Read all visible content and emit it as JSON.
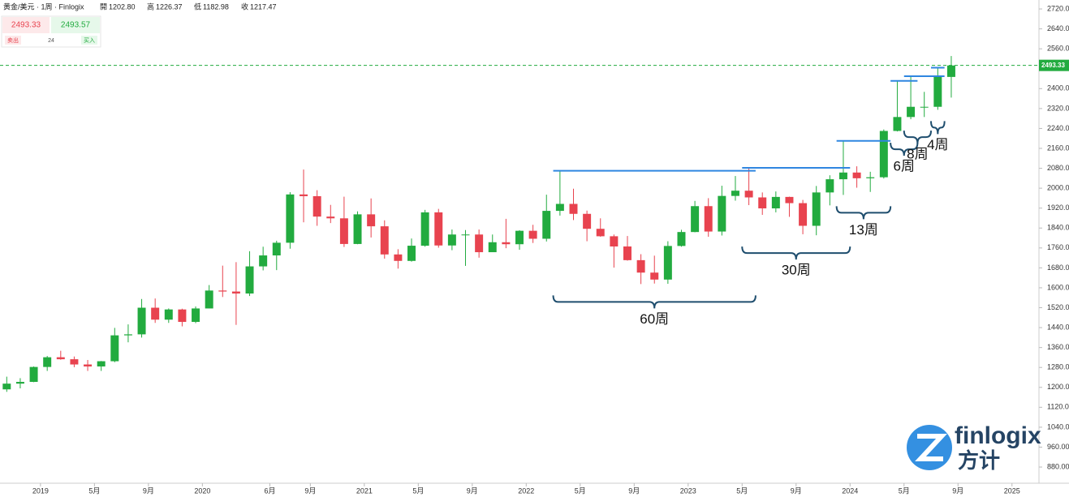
{
  "chart_data": {
    "type": "candlestick",
    "title": "黄金/美元 · 1周 · Finlogix",
    "stats": [
      {
        "label": "開",
        "value": "1202.80"
      },
      {
        "label": "高",
        "value": "1226.37"
      },
      {
        "label": "低",
        "value": "1182.98"
      },
      {
        "label": "收",
        "value": "1217.47"
      }
    ],
    "quote": {
      "sell_price": "2493.33",
      "sell_label": "卖出",
      "spread": "24",
      "buy_price": "2493.57",
      "buy_label": "买入"
    },
    "x": [
      "2018-10",
      "2018-11",
      "2018-12",
      "2019-01",
      "2019-02",
      "2019-03",
      "2019-04",
      "2019-05",
      "2019-06",
      "2019-07",
      "2019-08",
      "2019-09",
      "2019-10",
      "2019-11",
      "2019-12",
      "2020-01",
      "2020-02",
      "2020-03",
      "2020-04",
      "2020-05",
      "2020-06",
      "2020-07",
      "2020-08",
      "2020-09",
      "2020-10",
      "2020-11",
      "2020-12",
      "2021-01",
      "2021-02",
      "2021-03",
      "2021-04",
      "2021-05",
      "2021-06",
      "2021-07",
      "2021-08",
      "2021-09",
      "2021-10",
      "2021-11",
      "2021-12",
      "2022-01",
      "2022-02",
      "2022-03",
      "2022-04",
      "2022-05",
      "2022-06",
      "2022-07",
      "2022-08",
      "2022-09",
      "2022-10",
      "2022-11",
      "2022-12",
      "2023-01",
      "2023-02",
      "2023-03",
      "2023-04",
      "2023-05",
      "2023-06",
      "2023-07",
      "2023-08",
      "2023-09",
      "2023-10",
      "2023-11",
      "2023-12",
      "2024-01",
      "2024-02",
      "2024-03",
      "2024-04",
      "2024-05",
      "2024-06",
      "2024-07",
      "2024-08"
    ],
    "open": [
      1192,
      1215,
      1222,
      1282,
      1321,
      1313,
      1292,
      1284,
      1305,
      1409,
      1413,
      1520,
      1472,
      1513,
      1463,
      1517,
      1589,
      1585,
      1577,
      1686,
      1730,
      1781,
      1975,
      1968,
      1886,
      1879,
      1776,
      1895,
      1847,
      1734,
      1708,
      1769,
      1903,
      1770,
      1814,
      1814,
      1743,
      1783,
      1775,
      1829,
      1797,
      1909,
      1937,
      1897,
      1837,
      1807,
      1766,
      1711,
      1661,
      1633,
      1768,
      1824,
      1928,
      1826,
      1969,
      1990,
      1963,
      1919,
      1965,
      1940,
      1849,
      1983,
      2036,
      2063,
      2040,
      2044,
      2230,
      2286,
      2327,
      2327,
      2447
    ],
    "high": [
      1243,
      1237,
      1284,
      1326,
      1347,
      1324,
      1310,
      1306,
      1439,
      1453,
      1555,
      1557,
      1517,
      1516,
      1525,
      1611,
      1689,
      1703,
      1747,
      1765,
      1789,
      1984,
      2075,
      1992,
      1933,
      1966,
      1907,
      1959,
      1871,
      1755,
      1798,
      1913,
      1917,
      1834,
      1832,
      1834,
      1814,
      1877,
      1831,
      1853,
      1974,
      2070,
      1998,
      1910,
      1879,
      1814,
      1808,
      1735,
      1729,
      1787,
      1833,
      1949,
      1960,
      2010,
      2049,
      2082,
      1983,
      1987,
      1966,
      1953,
      2009,
      2052,
      2190,
      2088,
      2066,
      2236,
      2431,
      2450,
      2387,
      2484,
      2531
    ],
    "low": [
      1182,
      1196,
      1221,
      1266,
      1311,
      1281,
      1266,
      1266,
      1301,
      1381,
      1400,
      1459,
      1459,
      1445,
      1458,
      1517,
      1563,
      1451,
      1567,
      1670,
      1671,
      1757,
      1863,
      1849,
      1860,
      1764,
      1775,
      1802,
      1717,
      1677,
      1705,
      1765,
      1761,
      1751,
      1688,
      1721,
      1746,
      1759,
      1753,
      1780,
      1786,
      1890,
      1872,
      1787,
      1805,
      1681,
      1709,
      1615,
      1617,
      1616,
      1765,
      1823,
      1805,
      1810,
      1950,
      1932,
      1893,
      1903,
      1885,
      1815,
      1811,
      1931,
      1973,
      2002,
      1985,
      2039,
      2228,
      2277,
      2286,
      2315,
      2364
    ],
    "close": [
      1215,
      1222,
      1282,
      1321,
      1313,
      1292,
      1284,
      1305,
      1409,
      1413,
      1520,
      1472,
      1513,
      1463,
      1517,
      1589,
      1585,
      1577,
      1686,
      1730,
      1781,
      1975,
      1968,
      1886,
      1879,
      1776,
      1895,
      1847,
      1734,
      1708,
      1769,
      1903,
      1770,
      1814,
      1814,
      1743,
      1783,
      1775,
      1829,
      1797,
      1909,
      1937,
      1897,
      1837,
      1807,
      1766,
      1711,
      1661,
      1633,
      1768,
      1824,
      1928,
      1826,
      1969,
      1990,
      1963,
      1919,
      1965,
      1940,
      1849,
      1983,
      2036,
      2063,
      2040,
      2044,
      2230,
      2286,
      2327,
      2327,
      2447,
      2493
    ],
    "up_color": "#22ab3f",
    "down_color": "#e8434f",
    "xlim": [
      "2018-10",
      "2025-03"
    ],
    "xticks": [
      {
        "value": "2019-01",
        "label": "2019"
      },
      {
        "value": "2019-05",
        "label": "5月"
      },
      {
        "value": "2019-09",
        "label": "9月"
      },
      {
        "value": "2020-01",
        "label": "2020"
      },
      {
        "value": "2020-06",
        "label": "6月"
      },
      {
        "value": "2020-09",
        "label": "9月"
      },
      {
        "value": "2021-01",
        "label": "2021"
      },
      {
        "value": "2021-05",
        "label": "5月"
      },
      {
        "value": "2021-09",
        "label": "9月"
      },
      {
        "value": "2022-01",
        "label": "2022"
      },
      {
        "value": "2022-05",
        "label": "5月"
      },
      {
        "value": "2022-09",
        "label": "9月"
      },
      {
        "value": "2023-01",
        "label": "2023"
      },
      {
        "value": "2023-05",
        "label": "5月"
      },
      {
        "value": "2023-09",
        "label": "9月"
      },
      {
        "value": "2024-01",
        "label": "2024"
      },
      {
        "value": "2024-05",
        "label": "5月"
      },
      {
        "value": "2024-09",
        "label": "9月"
      },
      {
        "value": "2025-01",
        "label": "2025"
      }
    ],
    "ylim": [
      815,
      2756
    ],
    "yticks": [
      {
        "value": 880,
        "label": "880.00"
      },
      {
        "value": 960,
        "label": "960.00"
      },
      {
        "value": 1040,
        "label": "1040.00"
      },
      {
        "value": 1120,
        "label": "1120.00"
      },
      {
        "value": 1200,
        "label": "1200.00"
      },
      {
        "value": 1280,
        "label": "1280.00"
      },
      {
        "value": 1360,
        "label": "1360.00"
      },
      {
        "value": 1440,
        "label": "1440.00"
      },
      {
        "value": 1520,
        "label": "1520.00"
      },
      {
        "value": 1600,
        "label": "1600.00"
      },
      {
        "value": 1680,
        "label": "1680.00"
      },
      {
        "value": 1760,
        "label": "1760.00"
      },
      {
        "value": 1840,
        "label": "1840.00"
      },
      {
        "value": 1920,
        "label": "1920.00"
      },
      {
        "value": 2000,
        "label": "2000.00"
      },
      {
        "value": 2080,
        "label": "2080.00"
      },
      {
        "value": 2160,
        "label": "2160.00"
      },
      {
        "value": 2240,
        "label": "2240.00"
      },
      {
        "value": 2320,
        "label": "2320.00"
      },
      {
        "value": 2400,
        "label": "2400.00"
      },
      {
        "value": 2480,
        "label": "2480.00"
      },
      {
        "value": 2560,
        "label": "2560.00"
      },
      {
        "value": 2640,
        "label": "2640.00"
      },
      {
        "value": 2720,
        "label": "2720.00"
      }
    ],
    "current_price": {
      "value": 2493.33,
      "label": "2493.33"
    },
    "current_color": "#22ab3f",
    "levels": [
      {
        "value": 2070,
        "start": "2022-03",
        "end": "2023-05"
      },
      {
        "value": 2082,
        "start": "2023-05",
        "end": "2023-12"
      },
      {
        "value": 2190,
        "start": "2023-12",
        "end": "2024-03"
      },
      {
        "value": 2431,
        "start": "2024-04",
        "end": "2024-05"
      },
      {
        "value": 2450,
        "start": "2024-05",
        "end": "2024-07"
      },
      {
        "value": 2484,
        "start": "2024-07",
        "end": "2024-07"
      }
    ],
    "level_color": "#2f86e0",
    "annotations": [
      {
        "text": "60周",
        "start": "2022-03",
        "end": "2023-05"
      },
      {
        "text": "30周",
        "start": "2023-05",
        "end": "2023-12"
      },
      {
        "text": "13周",
        "start": "2023-12",
        "end": "2024-03"
      },
      {
        "text": "6周",
        "start": "2024-04",
        "end": "2024-05"
      },
      {
        "text": "8周",
        "start": "2024-05",
        "end": "2024-06"
      },
      {
        "text": "4周",
        "start": "2024-07",
        "end": "2024-07"
      }
    ],
    "annotation_color": "#1f4e6e",
    "watermark": {
      "brand": "finlogix",
      "brand_cn": "方计"
    }
  }
}
